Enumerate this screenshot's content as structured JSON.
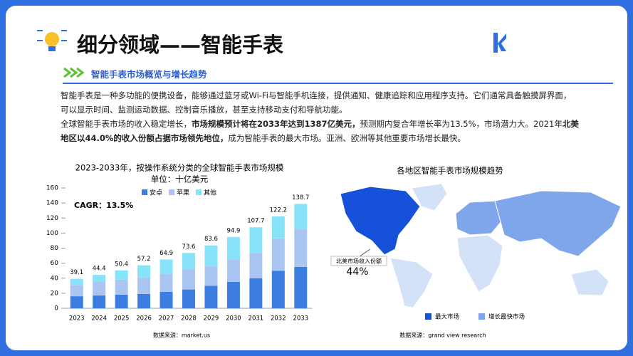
{
  "header": {
    "title": "细分领域——智能手表",
    "section": "智能手表市场概览与增长趋势"
  },
  "body": {
    "paragraphs": [
      [
        {
          "text": "智能手表是一种多功能的便携设备，能够通过蓝牙或Wi-Fi与智能手机连接，提供通知、健康追踪和应用程序支持。它们通常具备触摸屏界面，可以显示时间、监测运动数据、控制音乐播放，甚至支持移动支付和导航功能。",
          "bold": false
        }
      ],
      [
        {
          "text": "全球智能手表市场的收入稳定增长，",
          "bold": false
        },
        {
          "text": "市场规模预计将在2033年达到1387亿美元，",
          "bold": true
        },
        {
          "text": "预测期内复合年增长率为13.5%，市场潜力大。2021年",
          "bold": false
        },
        {
          "text": "北美地区以44.0%的收入份额占据市场领先地位，",
          "bold": true
        },
        {
          "text": "成为智能手表的最大市场。亚洲、欧洲等其他重要市场增长最快。",
          "bold": false
        }
      ]
    ]
  },
  "chart_data": {
    "type": "bar",
    "stacked": true,
    "title": "2023-2033年，按操作系统分类的全球智能手表市场规模",
    "subtitle": "单位：十亿美元",
    "categories": [
      "2023",
      "2024",
      "2025",
      "2026",
      "2027",
      "2028",
      "2029",
      "2030",
      "2031",
      "2032",
      "2033"
    ],
    "series": [
      {
        "name": "安卓",
        "color": "#3b7de0",
        "values": [
          16,
          17,
          18,
          19,
          22,
          25,
          30,
          35,
          40,
          50,
          55
        ]
      },
      {
        "name": "苹果",
        "color": "#aac5f2",
        "values": [
          15,
          18,
          20,
          22,
          24,
          27,
          26,
          30,
          33,
          43,
          50
        ]
      },
      {
        "name": "其他",
        "color": "#86e3f8",
        "values": [
          8.1,
          9.4,
          12.4,
          16.2,
          18.9,
          21.6,
          27.6,
          29.9,
          34.7,
          29.2,
          33.7
        ]
      }
    ],
    "totals": [
      39.1,
      44.4,
      50.4,
      57.2,
      64.9,
      73.6,
      83.6,
      94.9,
      107.7,
      122.2,
      138.7
    ],
    "annotation": "CAGR：13.5%",
    "source": "数据来源：market.us",
    "ylim": [
      0,
      160
    ],
    "yticks": [
      0,
      20,
      40,
      60,
      80,
      100,
      120,
      140,
      160
    ]
  },
  "map": {
    "title": "各地区智能手表市场规模趋势",
    "annotation": "北美市场收入份额",
    "share": "44%",
    "legend": [
      {
        "name": "最大市场",
        "color": "#1552d9"
      },
      {
        "name": "增长最快市场",
        "color": "#7fa6ea"
      }
    ],
    "source": "数据来源：grand view research"
  }
}
